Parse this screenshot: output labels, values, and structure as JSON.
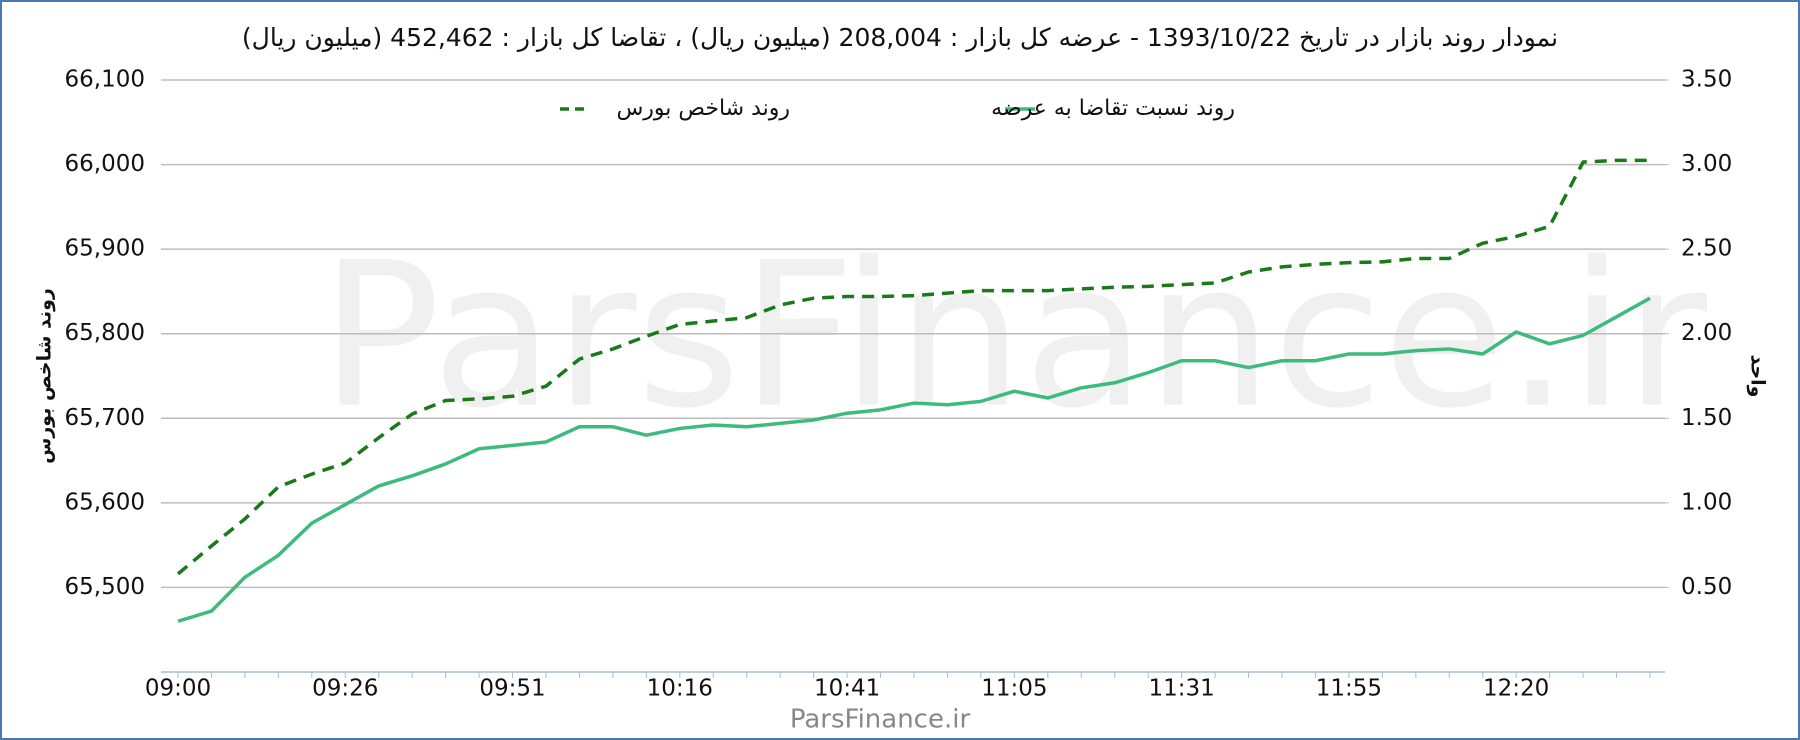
{
  "chart_data": {
    "type": "line",
    "title": "نمودار روند بازار در تاریخ 1393/10/22 - عرضه کل بازار : 208,004 (میلیون ریال) ، تقاضا کل بازار : 452,462 (میلیون ریال)",
    "y_label": "روند شاخص بورس",
    "y2_label": "واحد",
    "watermark": "ParsFinance.ir",
    "categories": [
      "09:00",
      null,
      null,
      null,
      null,
      "09:26",
      null,
      null,
      null,
      null,
      "09:51",
      null,
      null,
      null,
      null,
      "10:16",
      null,
      null,
      null,
      null,
      "10:41",
      null,
      null,
      null,
      null,
      "11:05",
      null,
      null,
      null,
      null,
      "11:31",
      null,
      null,
      null,
      null,
      "11:55",
      null,
      null,
      null,
      null,
      "12:20",
      null,
      null,
      null,
      null
    ],
    "series": [
      {
        "name": "روند شاخص بورس",
        "color": "#1a7a1a",
        "dashed": true,
        "values": [
          65516,
          65549,
          65581,
          65619,
          65634,
          65647,
          65677,
          65705,
          65721,
          65723,
          65726,
          65738,
          65770,
          65782,
          65797,
          65811,
          65815,
          65819,
          65834,
          65842,
          65844,
          65844,
          65845,
          65848,
          65851,
          65851,
          65851,
          65853,
          65855,
          65856,
          65858,
          65860,
          65873,
          65879,
          65882,
          65884,
          65885,
          65889,
          65889,
          65907,
          65915,
          65927,
          66003,
          66005,
          66005
        ]
      },
      {
        "name": "روند نسبت تقاضا به عرضه",
        "color": "#3dbb7e",
        "dashed": false,
        "axis": "y2",
        "values": [
          0.3,
          0.36,
          0.56,
          0.69,
          0.88,
          0.99,
          1.1,
          1.16,
          1.23,
          1.32,
          1.34,
          1.36,
          1.45,
          1.45,
          1.4,
          1.44,
          1.46,
          1.45,
          1.47,
          1.49,
          1.53,
          1.55,
          1.59,
          1.58,
          1.6,
          1.66,
          1.62,
          1.68,
          1.71,
          1.77,
          1.84,
          1.84,
          1.8,
          1.84,
          1.84,
          1.88,
          1.88,
          1.9,
          1.91,
          1.88,
          2.01,
          1.94,
          1.99,
          2.1,
          2.21
        ]
      }
    ],
    "ylim": [
      65400,
      66100
    ],
    "yticks": [
      {
        "value": 65500,
        "label": "65,500"
      },
      {
        "value": 65600,
        "label": "65,600"
      },
      {
        "value": 65700,
        "label": "65,700"
      },
      {
        "value": 65800,
        "label": "65,800"
      },
      {
        "value": 65900,
        "label": "65,900"
      },
      {
        "value": 66000,
        "label": "66,000"
      },
      {
        "value": 66100,
        "label": "66,100"
      }
    ],
    "y2lim": [
      0,
      3.5
    ],
    "y2ticks": [
      {
        "value": 0.5,
        "label": "0.50"
      },
      {
        "value": 1,
        "label": "1.00"
      },
      {
        "value": 1.5,
        "label": "1.50"
      },
      {
        "value": 2,
        "label": "2.00"
      },
      {
        "value": 2.5,
        "label": "2.50"
      },
      {
        "value": 3,
        "label": "3.00"
      },
      {
        "value": 3.5,
        "label": "3.50"
      }
    ],
    "grid": true
  }
}
